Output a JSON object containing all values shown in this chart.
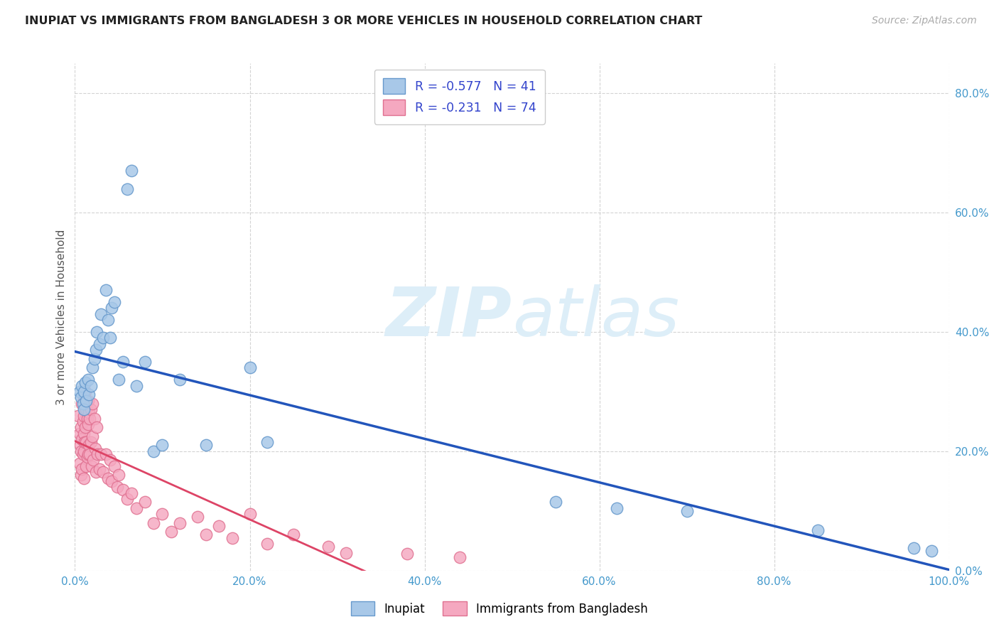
{
  "title": "INUPIAT VS IMMIGRANTS FROM BANGLADESH 3 OR MORE VEHICLES IN HOUSEHOLD CORRELATION CHART",
  "source": "Source: ZipAtlas.com",
  "ylabel": "3 or more Vehicles in Household",
  "R1": -0.577,
  "N1": 41,
  "R2": -0.231,
  "N2": 74,
  "legend_label1": "Inupiat",
  "legend_label2": "Immigrants from Bangladesh",
  "color1": "#a8c8e8",
  "color1_edge": "#6699cc",
  "color2": "#f5a8c0",
  "color2_edge": "#e07090",
  "line1_color": "#2255bb",
  "line2_color": "#dd4466",
  "watermark_color": "#ddeef8",
  "xlim": [
    0.0,
    1.0
  ],
  "ylim": [
    0.0,
    0.85
  ],
  "xticks": [
    0.0,
    0.2,
    0.4,
    0.6,
    0.8,
    1.0
  ],
  "yticks": [
    0.0,
    0.2,
    0.4,
    0.6,
    0.8
  ],
  "xticklabels": [
    "0.0%",
    "20.0%",
    "40.0%",
    "60.0%",
    "80.0%",
    "100.0%"
  ],
  "yticklabels_right": [
    "0.0%",
    "20.0%",
    "40.0%",
    "60.0%",
    "80.0%"
  ],
  "inupiat_x": [
    0.005,
    0.007,
    0.008,
    0.009,
    0.01,
    0.01,
    0.012,
    0.013,
    0.015,
    0.016,
    0.018,
    0.02,
    0.022,
    0.024,
    0.025,
    0.028,
    0.03,
    0.032,
    0.035,
    0.038,
    0.04,
    0.042,
    0.045,
    0.05,
    0.055,
    0.06,
    0.065,
    0.07,
    0.08,
    0.09,
    0.1,
    0.12,
    0.15,
    0.2,
    0.22,
    0.55,
    0.62,
    0.7,
    0.85,
    0.96,
    0.98
  ],
  "inupiat_y": [
    0.3,
    0.29,
    0.31,
    0.28,
    0.3,
    0.27,
    0.315,
    0.285,
    0.32,
    0.295,
    0.31,
    0.34,
    0.355,
    0.37,
    0.4,
    0.38,
    0.43,
    0.39,
    0.47,
    0.42,
    0.39,
    0.44,
    0.45,
    0.32,
    0.35,
    0.64,
    0.67,
    0.31,
    0.35,
    0.2,
    0.21,
    0.32,
    0.21,
    0.34,
    0.215,
    0.115,
    0.105,
    0.1,
    0.068,
    0.038,
    0.033
  ],
  "bangladesh_x": [
    0.004,
    0.005,
    0.005,
    0.006,
    0.007,
    0.007,
    0.007,
    0.008,
    0.008,
    0.008,
    0.009,
    0.009,
    0.01,
    0.01,
    0.01,
    0.01,
    0.01,
    0.011,
    0.011,
    0.012,
    0.012,
    0.013,
    0.013,
    0.013,
    0.014,
    0.014,
    0.015,
    0.015,
    0.015,
    0.016,
    0.016,
    0.017,
    0.017,
    0.018,
    0.018,
    0.019,
    0.02,
    0.02,
    0.021,
    0.022,
    0.023,
    0.024,
    0.025,
    0.026,
    0.028,
    0.03,
    0.032,
    0.035,
    0.038,
    0.04,
    0.042,
    0.045,
    0.048,
    0.05,
    0.055,
    0.06,
    0.065,
    0.07,
    0.08,
    0.09,
    0.1,
    0.11,
    0.12,
    0.14,
    0.15,
    0.165,
    0.18,
    0.2,
    0.22,
    0.25,
    0.29,
    0.31,
    0.38,
    0.44
  ],
  "bangladesh_y": [
    0.26,
    0.23,
    0.18,
    0.21,
    0.24,
    0.2,
    0.16,
    0.28,
    0.22,
    0.17,
    0.25,
    0.195,
    0.29,
    0.26,
    0.23,
    0.2,
    0.155,
    0.27,
    0.215,
    0.3,
    0.24,
    0.27,
    0.215,
    0.175,
    0.255,
    0.19,
    0.285,
    0.245,
    0.195,
    0.265,
    0.21,
    0.255,
    0.195,
    0.27,
    0.215,
    0.175,
    0.28,
    0.225,
    0.185,
    0.255,
    0.205,
    0.165,
    0.24,
    0.195,
    0.17,
    0.195,
    0.165,
    0.195,
    0.155,
    0.185,
    0.15,
    0.175,
    0.14,
    0.16,
    0.135,
    0.12,
    0.13,
    0.105,
    0.115,
    0.08,
    0.095,
    0.065,
    0.08,
    0.09,
    0.06,
    0.075,
    0.055,
    0.095,
    0.045,
    0.06,
    0.04,
    0.03,
    0.028,
    0.022
  ]
}
